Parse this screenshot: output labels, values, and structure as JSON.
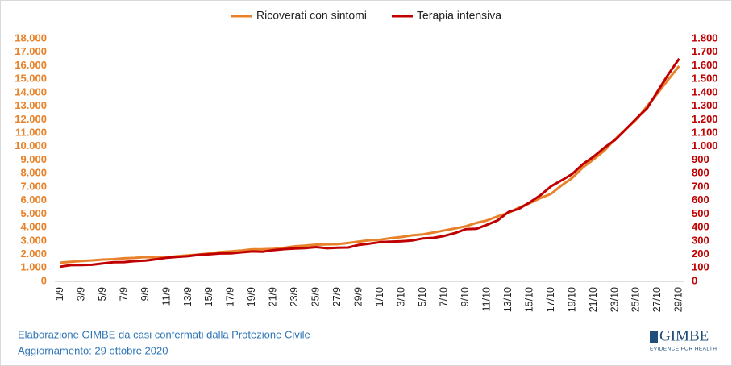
{
  "chart_data": {
    "type": "line",
    "categories": [
      "1/9",
      null,
      "3/9",
      null,
      "5/9",
      null,
      "7/9",
      null,
      "9/9",
      null,
      "11/9",
      null,
      "13/9",
      null,
      "15/9",
      null,
      "17/9",
      null,
      "19/9",
      null,
      "21/9",
      null,
      "23/9",
      null,
      "25/9",
      null,
      "27/9",
      null,
      "29/9",
      null,
      "1/10",
      null,
      "3/10",
      null,
      "5/10",
      null,
      "7/10",
      null,
      "9/10",
      null,
      "11/10",
      null,
      "13/10",
      null,
      "15/10",
      null,
      "17/10",
      null,
      "19/10",
      null,
      "21/10",
      null,
      "23/10",
      null,
      "25/10",
      null,
      "27/10",
      null,
      "29/10"
    ],
    "series": [
      {
        "name": "Ricoverati con sintomi",
        "color": "#e8822a",
        "values": [
          1380,
          1450,
          1505,
          1554,
          1614,
          1646,
          1708,
          1743,
          1798,
          1757,
          1781,
          1874,
          1927,
          1991,
          2069,
          2177,
          2222,
          2285,
          2380,
          2384,
          2410,
          2488,
          2604,
          2657,
          2718,
          2746,
          2758,
          2846,
          2953,
          3047,
          3097,
          3204,
          3287,
          3416,
          3487,
          3625,
          3782,
          3925,
          4086,
          4336,
          4519,
          4821,
          5076,
          5470,
          5796,
          6178,
          6487,
          7131,
          7676,
          8454,
          9057,
          9694,
          10549,
          11287,
          12006,
          12997,
          13955,
          14981,
          15964
        ]
      },
      {
        "name": "Terapia intensiva",
        "color": "#c00000",
        "axis": "y2",
        "values": [
          109,
          120,
          121,
          123,
          133,
          142,
          143,
          150,
          154,
          164,
          175,
          182,
          187,
          197,
          201,
          207,
          208,
          215,
          222,
          220,
          232,
          239,
          244,
          247,
          254,
          246,
          250,
          251,
          271,
          280,
          291,
          294,
          297,
          303,
          319,
          323,
          337,
          358,
          387,
          390,
          420,
          452,
          514,
          539,
          586,
          638,
          705,
          750,
          797,
          870,
          926,
          992,
          1049,
          1128,
          1208,
          1284,
          1411,
          1536,
          1651
        ]
      }
    ],
    "ylim": [
      0,
      18000
    ],
    "yticks": [
      0,
      {
        "value": 1000,
        "label": "1.000"
      },
      {
        "value": 2000,
        "label": "2.000"
      },
      {
        "value": 3000,
        "label": "3.000"
      },
      {
        "value": 4000,
        "label": "4.000"
      },
      {
        "value": 5000,
        "label": "5.000"
      },
      {
        "value": 6000,
        "label": "6.000"
      },
      {
        "value": 7000,
        "label": "7.000"
      },
      {
        "value": 8000,
        "label": "8.000"
      },
      {
        "value": 9000,
        "label": "9.000"
      },
      {
        "value": 10000,
        "label": "10.000"
      },
      {
        "value": 11000,
        "label": "11.000"
      },
      {
        "value": 12000,
        "label": "12.000"
      },
      {
        "value": 13000,
        "label": "13.000"
      },
      {
        "value": 14000,
        "label": "14.000"
      },
      {
        "value": 15000,
        "label": "15.000"
      },
      {
        "value": 16000,
        "label": "16.000"
      },
      {
        "value": 17000,
        "label": "17.000"
      },
      {
        "value": 18000,
        "label": "18.000"
      }
    ],
    "y2lim": [
      0,
      1800
    ],
    "y2ticks": [
      0,
      100,
      200,
      300,
      400,
      500,
      600,
      700,
      800,
      900,
      {
        "value": 1000,
        "label": "1.000"
      },
      {
        "value": 1100,
        "label": "1.100"
      },
      {
        "value": 1200,
        "label": "1.200"
      },
      {
        "value": 1300,
        "label": "1.300"
      },
      {
        "value": 1400,
        "label": "1.400"
      },
      {
        "value": 1500,
        "label": "1.500"
      },
      {
        "value": 1600,
        "label": "1.600"
      },
      {
        "value": 1700,
        "label": "1.700"
      },
      {
        "value": 1800,
        "label": "1.800"
      }
    ],
    "grid": false,
    "legend": "top",
    "source": "Elaborazione GIMBE da casi confermati dalla Protezione Civile",
    "updated": "Aggiornamento: 29 ottobre 2020",
    "logo": "GIMBE",
    "logo_tagline": "EVIDENCE FOR HEALTH"
  }
}
